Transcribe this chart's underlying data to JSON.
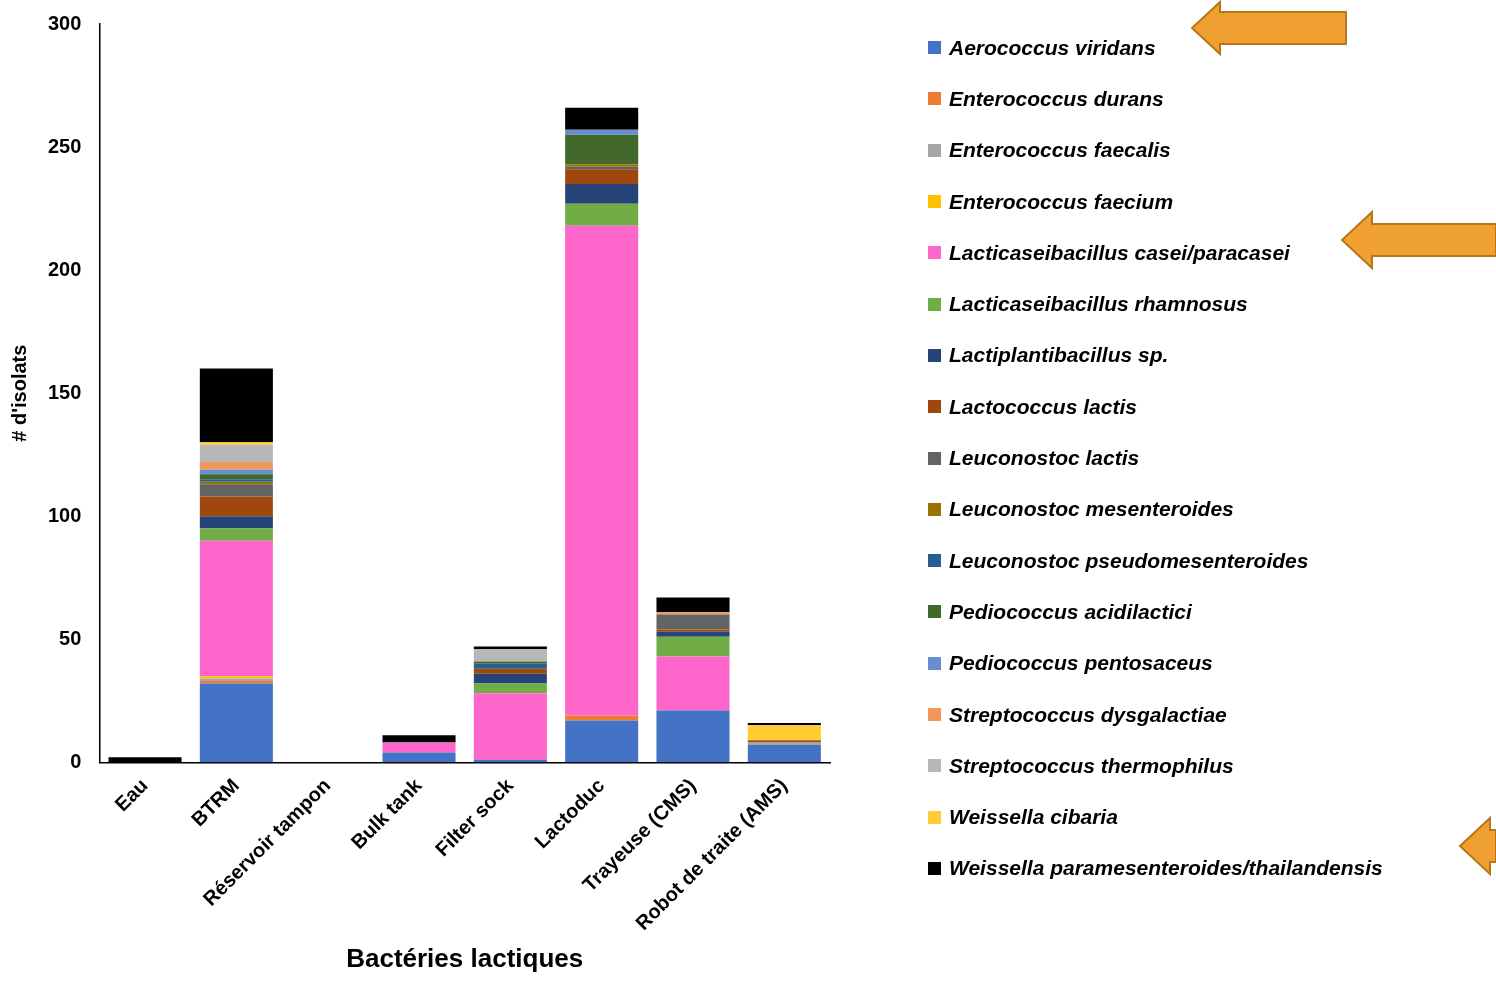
{
  "chart_data": {
    "type": "bar",
    "stacked": true,
    "xlabel": "Bactéries lactiques",
    "ylabel": "# d'isolats",
    "categories": [
      "Eau",
      "BTRM",
      "Réservoir tampon",
      "Bulk tank",
      "Filter sock",
      "Lactoduc",
      "Trayeuse (CMS)",
      "Robot de traite (AMS)"
    ],
    "ylim": [
      0,
      300
    ],
    "yticks": [
      0,
      50,
      100,
      150,
      200,
      250,
      300
    ],
    "grid": false,
    "legend": "right",
    "series": [
      {
        "name": "Aerococcus viridans",
        "color": "#4472c4",
        "values": [
          0,
          32,
          0,
          4,
          1,
          17,
          21,
          7
        ]
      },
      {
        "name": "Enterococcus durans",
        "color": "#ed7d31",
        "values": [
          0,
          1,
          0,
          0,
          0,
          2,
          0,
          0
        ]
      },
      {
        "name": "Enterococcus faecalis",
        "color": "#a5a5a5",
        "values": [
          0,
          1,
          0,
          0,
          0,
          0,
          0,
          1
        ]
      },
      {
        "name": "Enterococcus faecium",
        "color": "#ffc000",
        "values": [
          0,
          1,
          0,
          0,
          0,
          0,
          0,
          0
        ]
      },
      {
        "name": "Lacticaseibacillus casei/paracasei",
        "color": "#ff66cc",
        "values": [
          0,
          55,
          0,
          4,
          27,
          199,
          22,
          0
        ]
      },
      {
        "name": "Lacticaseibacillus rhamnosus",
        "color": "#70ad47",
        "values": [
          0,
          5,
          0,
          0,
          4,
          9,
          8,
          0
        ]
      },
      {
        "name": "Lactiplantibacillus sp.",
        "color": "#264478",
        "values": [
          0,
          5,
          0,
          0,
          4,
          8,
          2,
          0
        ]
      },
      {
        "name": "Lactococcus lactis",
        "color": "#9e480e",
        "values": [
          0,
          8,
          0,
          0,
          2,
          6,
          1,
          1
        ]
      },
      {
        "name": "Leuconostoc lactis",
        "color": "#636363",
        "values": [
          0,
          5,
          0,
          0,
          0,
          1,
          6,
          0
        ]
      },
      {
        "name": "Leuconostoc mesenteroides",
        "color": "#997300",
        "values": [
          0,
          1,
          0,
          0,
          0,
          1,
          0,
          0
        ]
      },
      {
        "name": "Leuconostoc pseudomesenteroides",
        "color": "#255e91",
        "values": [
          0,
          1,
          0,
          0,
          2,
          0,
          0,
          0
        ]
      },
      {
        "name": "Pediococcus acidilactici",
        "color": "#43682b",
        "values": [
          0,
          2,
          0,
          0,
          1,
          12,
          0,
          0
        ]
      },
      {
        "name": "Pediococcus pentosaceus",
        "color": "#698ed0",
        "values": [
          0,
          2,
          0,
          0,
          0,
          2,
          0,
          0
        ]
      },
      {
        "name": "Streptococcus dysgalactiae",
        "color": "#f1975a",
        "values": [
          0,
          3,
          0,
          0,
          0,
          0,
          1,
          0
        ]
      },
      {
        "name": "Streptococcus thermophilus",
        "color": "#b7b7b7",
        "values": [
          0,
          7,
          0,
          0,
          5,
          0,
          0,
          0
        ]
      },
      {
        "name": "Weissella cibaria",
        "color": "#ffcd33",
        "values": [
          0,
          1,
          0,
          0,
          0,
          0,
          0,
          6
        ]
      },
      {
        "name": "Weissella paramesenteroides/thailandensis",
        "color": "#000000",
        "values": [
          2,
          30,
          0,
          3,
          1,
          9,
          6,
          1
        ]
      }
    ]
  }
}
